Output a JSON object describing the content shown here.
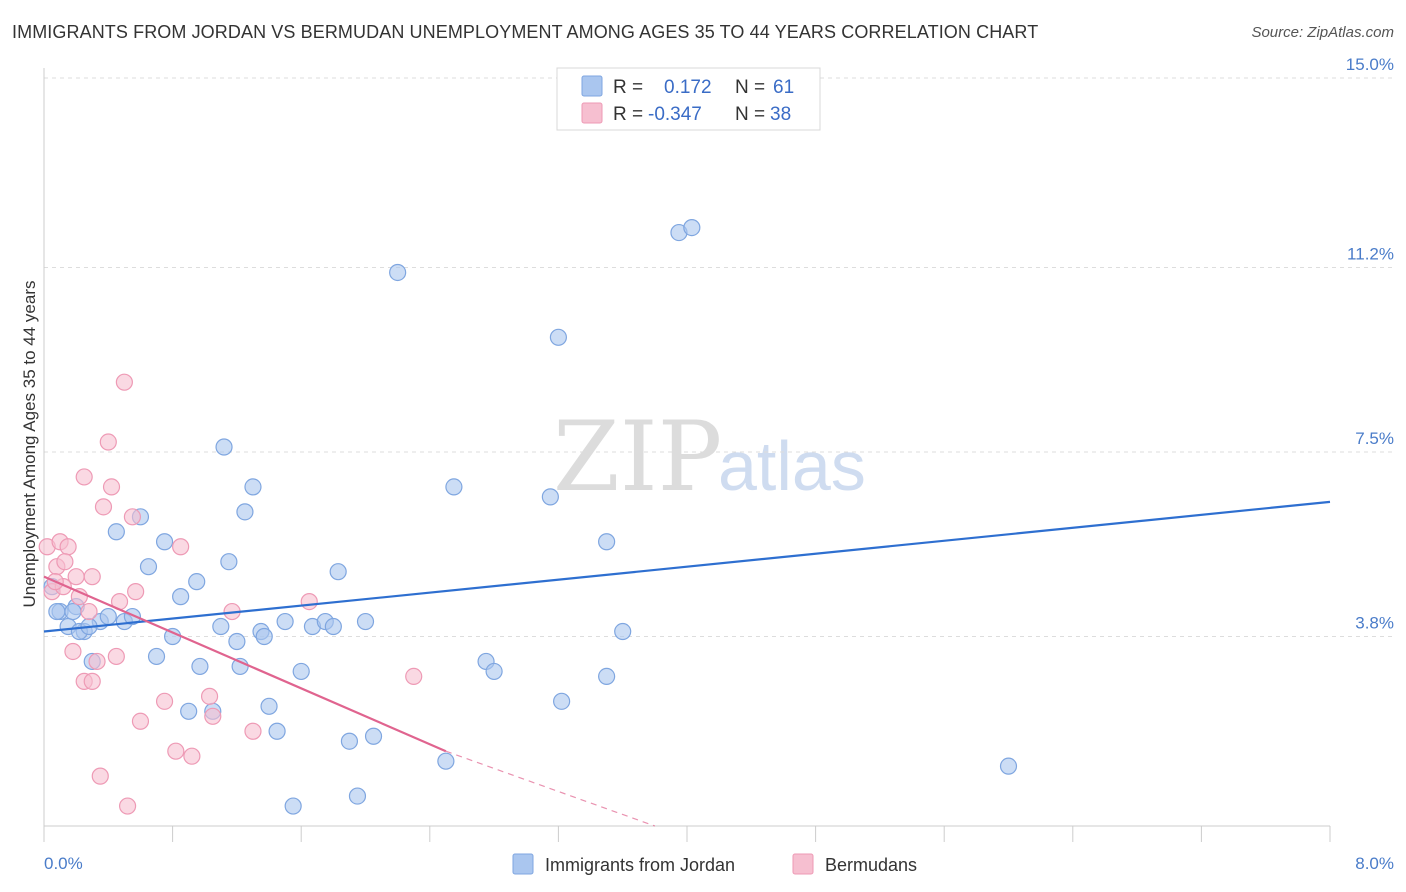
{
  "title": "IMMIGRANTS FROM JORDAN VS BERMUDAN UNEMPLOYMENT AMONG AGES 35 TO 44 YEARS CORRELATION CHART",
  "source": "Source: ZipAtlas.com",
  "watermark": {
    "part1": "ZIP",
    "part2": "atlas"
  },
  "colors": {
    "blue_fill": "#aac6ef",
    "blue_stroke": "#7fa6e0",
    "blue_line": "#2e6fd0",
    "pink_fill": "#f6bfd0",
    "pink_stroke": "#ee9ab5",
    "pink_line": "#e0648f",
    "grid": "#dddddd",
    "axis_text": "#4a7cc9"
  },
  "legend": {
    "rows": [
      {
        "r_label": "R =",
        "r_value": "0.172",
        "n_label": "N =",
        "n_value": "61",
        "series": "blue"
      },
      {
        "r_label": "R =",
        "r_value": "-0.347",
        "n_label": "N =",
        "n_value": "38",
        "series": "pink"
      }
    ]
  },
  "chart_data": {
    "type": "scatter",
    "title": "IMMIGRANTS FROM JORDAN VS BERMUDAN UNEMPLOYMENT AMONG AGES 35 TO 44 YEARS CORRELATION CHART",
    "xlabel": "",
    "ylabel": "Unemployment Among Ages 35 to 44 years",
    "xlim": [
      0,
      8.0
    ],
    "ylim": [
      0,
      15.0
    ],
    "x_tick_labels": [
      "0.0%",
      "8.0%"
    ],
    "y_ticks": [
      3.8,
      7.5,
      11.2,
      15.0
    ],
    "y_tick_labels": [
      "3.8%",
      "7.5%",
      "11.2%",
      "15.0%"
    ],
    "legend_position": "top-center",
    "series": [
      {
        "name": "Immigrants from Jordan",
        "color": "blue",
        "r": 0.172,
        "n": 61,
        "trend": {
          "x": [
            0.0,
            8.0
          ],
          "y": [
            3.9,
            6.5
          ]
        },
        "points": [
          [
            0.05,
            4.8
          ],
          [
            0.1,
            4.3
          ],
          [
            0.15,
            4.0
          ],
          [
            0.2,
            4.4
          ],
          [
            0.25,
            3.9
          ],
          [
            0.3,
            3.3
          ],
          [
            0.35,
            4.1
          ],
          [
            0.4,
            4.2
          ],
          [
            0.45,
            5.9
          ],
          [
            0.5,
            4.1
          ],
          [
            0.55,
            4.2
          ],
          [
            0.6,
            6.2
          ],
          [
            0.65,
            5.2
          ],
          [
            0.7,
            3.4
          ],
          [
            0.75,
            5.7
          ],
          [
            0.8,
            3.8
          ],
          [
            0.85,
            4.6
          ],
          [
            0.9,
            2.3
          ],
          [
            0.95,
            4.9
          ],
          [
            0.97,
            3.2
          ],
          [
            1.05,
            2.3
          ],
          [
            1.1,
            4.0
          ],
          [
            1.12,
            7.6
          ],
          [
            1.15,
            5.3
          ],
          [
            1.2,
            3.7
          ],
          [
            1.22,
            3.2
          ],
          [
            1.25,
            6.3
          ],
          [
            1.3,
            6.8
          ],
          [
            1.35,
            3.9
          ],
          [
            1.37,
            3.8
          ],
          [
            1.4,
            2.4
          ],
          [
            1.45,
            1.9
          ],
          [
            1.5,
            4.1
          ],
          [
            1.55,
            0.4
          ],
          [
            1.6,
            3.1
          ],
          [
            1.67,
            4.0
          ],
          [
            1.75,
            4.1
          ],
          [
            1.8,
            4.0
          ],
          [
            1.83,
            5.1
          ],
          [
            1.9,
            1.7
          ],
          [
            1.95,
            0.6
          ],
          [
            2.0,
            4.1
          ],
          [
            2.05,
            1.8
          ],
          [
            2.2,
            11.1
          ],
          [
            2.5,
            1.3
          ],
          [
            2.55,
            6.8
          ],
          [
            2.75,
            3.3
          ],
          [
            2.8,
            3.1
          ],
          [
            3.15,
            6.6
          ],
          [
            3.2,
            9.8
          ],
          [
            3.22,
            2.5
          ],
          [
            3.5,
            5.7
          ],
          [
            3.5,
            3.0
          ],
          [
            3.6,
            3.9
          ],
          [
            3.95,
            11.9
          ],
          [
            4.03,
            12.0
          ],
          [
            6.0,
            1.2
          ],
          [
            0.08,
            4.3
          ],
          [
            0.22,
            3.9
          ],
          [
            0.28,
            4.0
          ],
          [
            0.18,
            4.3
          ]
        ]
      },
      {
        "name": "Bermudans",
        "color": "pink",
        "r": -0.347,
        "n": 38,
        "trend": {
          "x": [
            0.0,
            2.5
          ],
          "y": [
            5.0,
            1.5
          ]
        },
        "trend_dashed": {
          "x": [
            2.5,
            3.8
          ],
          "y": [
            1.5,
            -0.3
          ]
        },
        "points": [
          [
            0.02,
            5.6
          ],
          [
            0.05,
            4.7
          ],
          [
            0.08,
            5.2
          ],
          [
            0.1,
            5.7
          ],
          [
            0.12,
            4.8
          ],
          [
            0.15,
            5.6
          ],
          [
            0.18,
            3.5
          ],
          [
            0.2,
            5.0
          ],
          [
            0.22,
            4.6
          ],
          [
            0.25,
            7.0
          ],
          [
            0.25,
            2.9
          ],
          [
            0.28,
            4.3
          ],
          [
            0.3,
            2.9
          ],
          [
            0.3,
            5.0
          ],
          [
            0.33,
            3.3
          ],
          [
            0.35,
            1.0
          ],
          [
            0.37,
            6.4
          ],
          [
            0.4,
            7.7
          ],
          [
            0.42,
            6.8
          ],
          [
            0.45,
            3.4
          ],
          [
            0.47,
            4.5
          ],
          [
            0.5,
            8.9
          ],
          [
            0.52,
            0.4
          ],
          [
            0.55,
            6.2
          ],
          [
            0.57,
            4.7
          ],
          [
            0.6,
            2.1
          ],
          [
            0.75,
            2.5
          ],
          [
            0.82,
            1.5
          ],
          [
            0.85,
            5.6
          ],
          [
            0.92,
            1.4
          ],
          [
            1.03,
            2.6
          ],
          [
            1.05,
            2.2
          ],
          [
            1.17,
            4.3
          ],
          [
            1.3,
            1.9
          ],
          [
            1.65,
            4.5
          ],
          [
            2.3,
            3.0
          ],
          [
            0.07,
            4.9
          ],
          [
            0.13,
            5.3
          ]
        ]
      }
    ]
  },
  "bottom_legend": [
    {
      "label": "Immigrants from Jordan",
      "series": "blue"
    },
    {
      "label": "Bermudans",
      "series": "pink"
    }
  ]
}
